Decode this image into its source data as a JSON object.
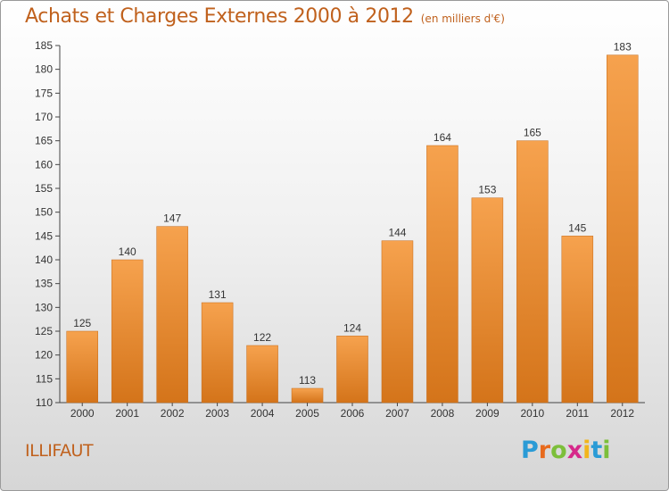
{
  "title": "Achats et Charges Externes 2000 à 2012",
  "unit": "(en milliers d'€)",
  "commune": "ILLIFAUT",
  "logo": {
    "letters": [
      "P",
      "r",
      "o",
      "x",
      "i",
      "t",
      "i"
    ],
    "colors": [
      "#2a9bd6",
      "#e86a1c",
      "#7cbf3a",
      "#d6288a",
      "#f2b51c",
      "#2a9bd6",
      "#7cbf3a"
    ]
  },
  "colors": {
    "bar_top": "#f6a24e",
    "bar_bottom": "#d4741a",
    "title": "#c0611d"
  },
  "chart_data": {
    "type": "bar",
    "categories": [
      "2000",
      "2001",
      "2002",
      "2003",
      "2004",
      "2005",
      "2006",
      "2007",
      "2008",
      "2009",
      "2010",
      "2011",
      "2012"
    ],
    "values": [
      125,
      140,
      147,
      131,
      122,
      113,
      124,
      144,
      164,
      153,
      165,
      145,
      183
    ],
    "ylim": [
      110,
      185
    ],
    "yticks": [
      110,
      115,
      120,
      125,
      130,
      135,
      140,
      145,
      150,
      155,
      160,
      165,
      170,
      175,
      180,
      185
    ],
    "grid": false
  }
}
